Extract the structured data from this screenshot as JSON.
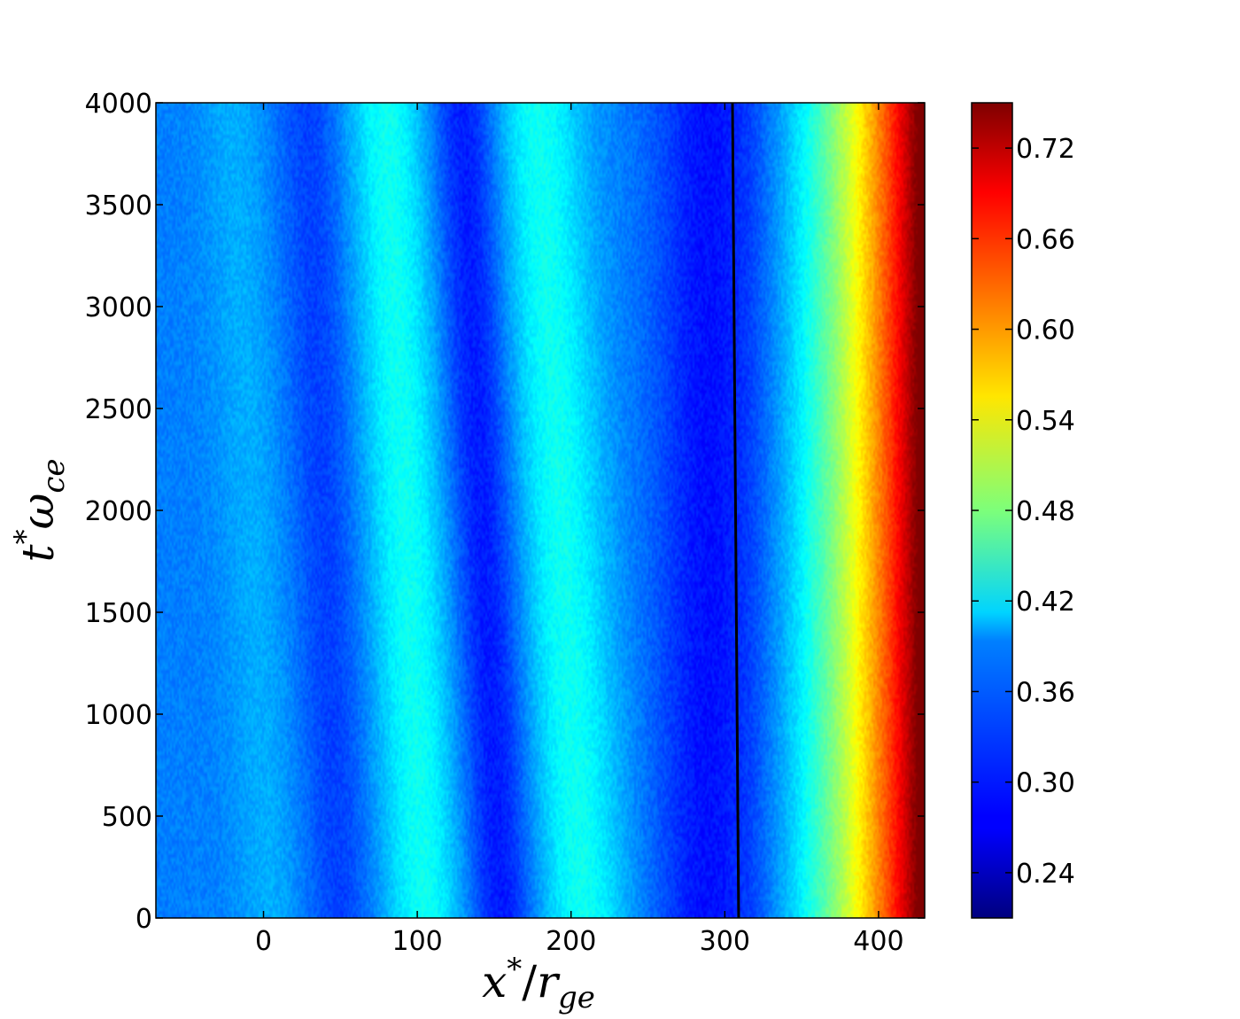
{
  "chart_data": {
    "type": "heatmap",
    "title": "",
    "xlabel": {
      "base": "x",
      "sup": "*",
      "sep": "/",
      "var": "r",
      "sub": "ge"
    },
    "ylabel": {
      "base": "t",
      "sup": "*",
      "var": "ω",
      "sub": "ce"
    },
    "xlim": [
      -70,
      430
    ],
    "ylim": [
      0,
      4000
    ],
    "x_ticks": [
      0,
      100,
      200,
      300,
      400
    ],
    "y_ticks": [
      0,
      500,
      1000,
      1500,
      2000,
      2500,
      3000,
      3500,
      4000
    ],
    "x_tick_labels": [
      "0",
      "100",
      "200",
      "300",
      "400"
    ],
    "y_tick_labels": [
      "0",
      "500",
      "1000",
      "1500",
      "2000",
      "2500",
      "3000",
      "3500",
      "4000"
    ],
    "colorbar": {
      "colormap": "jet",
      "vmin": 0.21,
      "vmax": 0.75,
      "ticks": [
        0.24,
        0.3,
        0.36,
        0.42,
        0.48,
        0.54,
        0.6,
        0.66,
        0.72
      ],
      "tick_labels": [
        "0.24",
        "0.30",
        "0.36",
        "0.42",
        "0.48",
        "0.54",
        "0.60",
        "0.66",
        "0.72"
      ]
    },
    "field_description": {
      "background_value": 0.345,
      "bands": [
        {
          "kind": "high",
          "x_at_t0": 105,
          "x_at_t4000": 80,
          "amplitude": 0.075,
          "half_width": 27
        },
        {
          "kind": "high",
          "x_at_t0": 208,
          "x_at_t4000": 178,
          "amplitude": 0.075,
          "half_width": 30
        },
        {
          "kind": "high",
          "x_at_t0": 5,
          "x_at_t4000": -20,
          "amplitude": 0.025,
          "half_width": 22
        },
        {
          "kind": "low",
          "x_at_t0": 50,
          "x_at_t4000": 30,
          "amplitude": -0.035,
          "half_width": 22
        },
        {
          "kind": "low",
          "x_at_t0": 155,
          "x_at_t4000": 130,
          "amplitude": -0.06,
          "half_width": 22
        },
        {
          "kind": "low",
          "x_at_t0": 290,
          "x_at_t4000": 290,
          "amplitude": -0.06,
          "half_width": 35
        }
      ],
      "right_rise": {
        "start_x": 315,
        "end_x": 430,
        "end_value": 0.72
      },
      "noise_amplitude": 0.012
    },
    "annotations": [
      {
        "type": "vertical_line",
        "x_at_t0": 309,
        "x_at_t4000": 305,
        "color": "#000000"
      }
    ]
  }
}
